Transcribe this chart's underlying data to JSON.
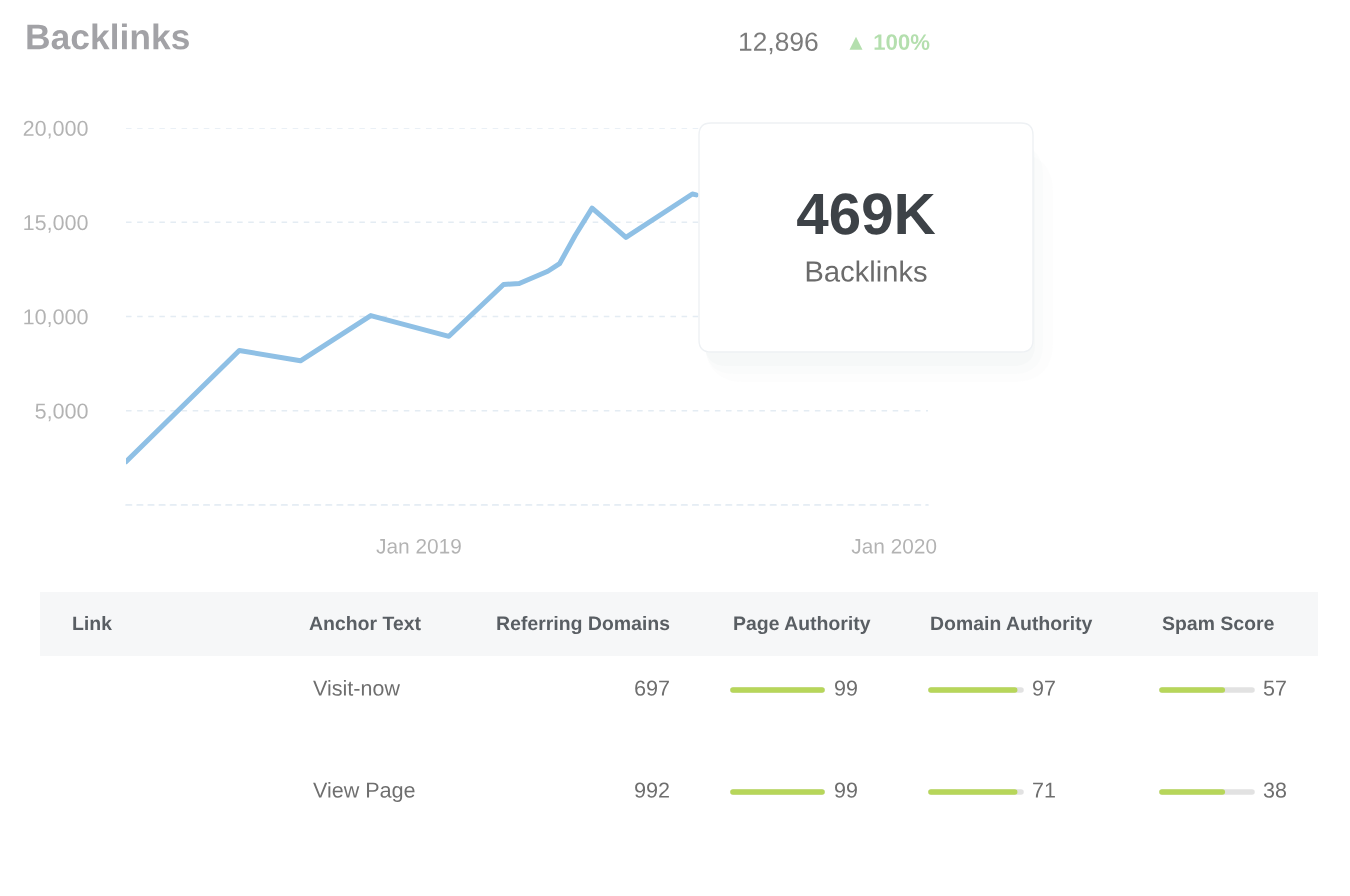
{
  "chart_data": [
    {
      "type": "line",
      "title": "Backlinks",
      "x": [
        "2018-05-21",
        "2018-08-16",
        "2018-10-02",
        "2018-11-25",
        "2019-01-24",
        "2019-03-07",
        "2019-03-19",
        "2019-04-10",
        "2019-04-19",
        "2019-05-01",
        "2019-05-14",
        "2019-06-09",
        "2019-07-30",
        "2019-08-02"
      ],
      "values": [
        2300,
        8200,
        7650,
        10050,
        8950,
        11700,
        11750,
        12400,
        12800,
        14300,
        15750,
        14200,
        16500,
        16450
      ],
      "color": "#8fc0e5",
      "xlim": [
        "2018-05-21",
        "2020-01-27"
      ],
      "xticks": [
        {
          "value": "2019-01-01",
          "label": "Jan 2019"
        },
        {
          "value": "2020-01-01",
          "label": "Jan 2020"
        }
      ],
      "ylim": [
        0,
        20000
      ],
      "yticks": [
        {
          "value": 0,
          "label": null
        },
        {
          "value": 5000,
          "label": "5,000"
        },
        {
          "value": 10000,
          "label": "10,000"
        },
        {
          "value": 15000,
          "label": "15,000"
        },
        {
          "value": 20000,
          "label": "20,000"
        }
      ],
      "grid": "y",
      "annotations": [
        "12,896",
        "▲ 100%",
        "469K",
        "Backlinks"
      ]
    },
    {
      "type": "other",
      "annotations": [
        "Link",
        "Anchor Text",
        "Referring Domains",
        "Page Authority",
        "Domain Authority",
        "Spam Score",
        "Visit-now",
        "697",
        "99",
        "97",
        "57",
        "View Page",
        "992",
        "99",
        "71",
        "38"
      ]
    }
  ]
}
